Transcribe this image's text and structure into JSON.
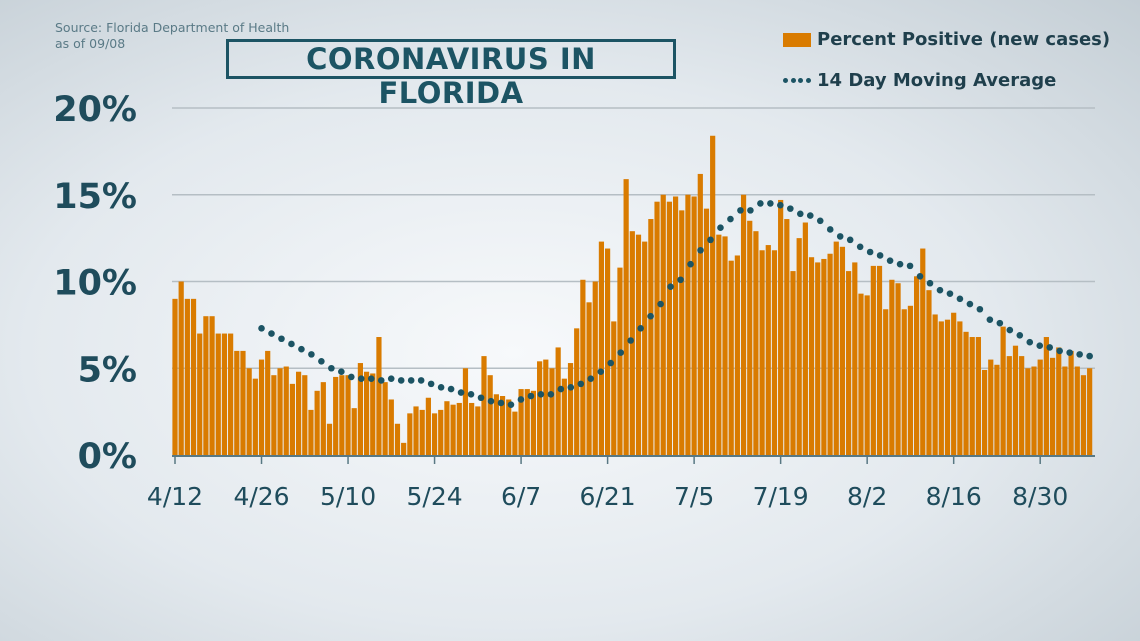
{
  "source_line1": "Source: Florida Department of Health",
  "source_line2": "as of 09/08",
  "chart_data": {
    "type": "bar",
    "title": "CORONAVIRUS IN FLORIDA",
    "xlabel": "",
    "ylabel": "",
    "ylim": [
      0,
      20
    ],
    "y_ticks": [
      "0%",
      "5%",
      "10%",
      "15%",
      "20%"
    ],
    "y_tick_values": [
      0,
      5,
      10,
      15,
      20
    ],
    "x_ticks": [
      "4/12",
      "4/26",
      "5/10",
      "5/24",
      "6/7",
      "6/21",
      "7/5",
      "7/19",
      "8/2",
      "8/16",
      "8/30"
    ],
    "x_start": "4/12",
    "x_end": "9/7",
    "grid": true,
    "legend_position": "top-right",
    "colors": {
      "bars": "#d97b00",
      "moving_average": "#1c5464"
    },
    "series": [
      {
        "name": "Percent Positive (new cases)",
        "type": "bar",
        "values": [
          9.0,
          10.0,
          9.0,
          9.0,
          7.0,
          8.0,
          8.0,
          7.0,
          7.0,
          7.0,
          6.0,
          6.0,
          5.0,
          4.4,
          5.5,
          6.0,
          4.6,
          5.0,
          5.1,
          4.1,
          4.8,
          4.6,
          2.6,
          3.7,
          4.2,
          1.8,
          4.5,
          4.6,
          4.6,
          2.7,
          5.3,
          4.8,
          4.7,
          6.8,
          4.2,
          3.2,
          1.8,
          0.7,
          2.4,
          2.8,
          2.6,
          3.3,
          2.4,
          2.6,
          3.1,
          2.9,
          3.0,
          5.0,
          3.0,
          2.8,
          5.7,
          4.6,
          3.5,
          3.4,
          3.2,
          2.5,
          3.8,
          3.8,
          3.7,
          5.4,
          5.5,
          5.0,
          6.2,
          4.4,
          5.3,
          7.3,
          10.1,
          8.8,
          10.0,
          12.3,
          11.9,
          7.7,
          10.8,
          15.9,
          12.9,
          12.7,
          12.3,
          13.6,
          14.6,
          15.0,
          14.6,
          14.9,
          14.1,
          15.0,
          14.9,
          16.2,
          14.2,
          18.4,
          12.7,
          12.6,
          11.2,
          11.5,
          15.0,
          13.5,
          12.9,
          11.8,
          12.1,
          11.8,
          14.7,
          13.6,
          10.6,
          12.5,
          13.4,
          11.4,
          11.1,
          11.3,
          11.6,
          12.3,
          12.0,
          10.6,
          11.1,
          9.3,
          9.2,
          10.9,
          10.9,
          8.4,
          10.1,
          9.9,
          8.4,
          8.6,
          10.3,
          11.9,
          9.5,
          8.1,
          7.7,
          7.8,
          8.2,
          7.7,
          7.1,
          6.8,
          6.8,
          4.9,
          5.5,
          5.2,
          7.4,
          5.7,
          6.3,
          5.7,
          5.0,
          5.1,
          5.5,
          6.8,
          5.6,
          6.2,
          5.1,
          6.0,
          5.1,
          4.6,
          5.0
        ]
      },
      {
        "name": "14 Day Moving Average",
        "type": "dotted-line",
        "start": "4/26",
        "end": "9/7",
        "values": [
          7.3,
          7.0,
          6.7,
          6.4,
          6.1,
          5.8,
          5.4,
          5.0,
          4.8,
          4.5,
          4.4,
          4.4,
          4.3,
          4.4,
          4.3,
          4.3,
          4.3,
          4.1,
          3.9,
          3.8,
          3.6,
          3.5,
          3.3,
          3.1,
          3.0,
          2.9,
          3.2,
          3.4,
          3.5,
          3.5,
          3.8,
          3.9,
          4.1,
          4.4,
          4.8,
          5.3,
          5.9,
          6.6,
          7.3,
          8.0,
          8.7,
          9.7,
          10.1,
          11.0,
          11.8,
          12.4,
          13.1,
          13.6,
          14.1,
          14.1,
          14.5,
          14.5,
          14.4,
          14.2,
          13.9,
          13.8,
          13.5,
          13.0,
          12.6,
          12.4,
          12.0,
          11.7,
          11.5,
          11.2,
          11.0,
          10.9,
          10.3,
          9.9,
          9.5,
          9.3,
          9.0,
          8.7,
          8.4,
          7.8,
          7.6,
          7.2,
          6.9,
          6.5,
          6.3,
          6.2,
          6.0,
          5.9,
          5.8,
          5.7
        ]
      }
    ]
  }
}
